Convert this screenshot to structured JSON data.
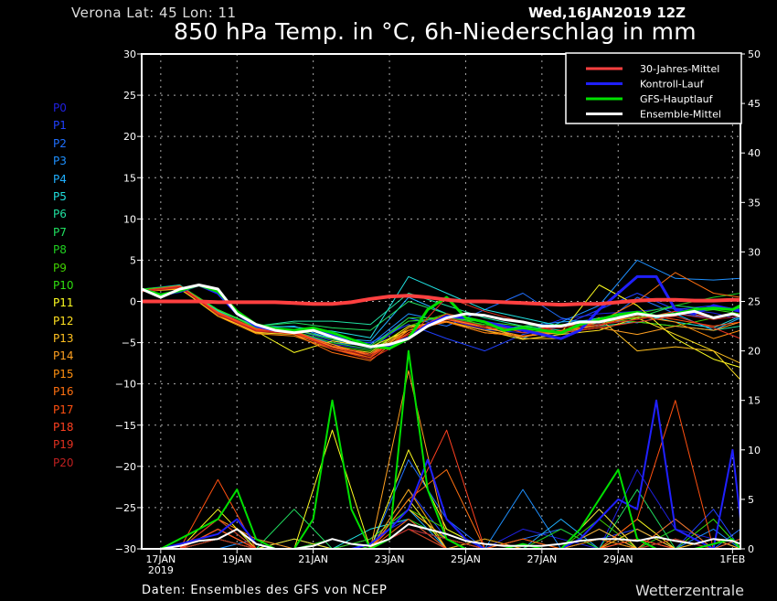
{
  "header": {
    "location": "Verona  Lat: 45 Lon: 11",
    "date": "Wed,16JAN2019 12Z",
    "title": "850 hPa Temp. in °C, 6h-Niederschlag in mm"
  },
  "footer": {
    "source": "Daten: Ensembles des GFS von NCEP",
    "brand": "Wetterzentrale"
  },
  "chart_data": {
    "type": "line",
    "title": "850 hPa Temp. in °C, 6h-Niederschlag in mm",
    "time_start": "16JAN2019 12Z",
    "time_step_hours_main": 12,
    "time_step_hours_members": 24,
    "x_range_days": [
      0,
      15.75
    ],
    "left_axis": {
      "label": "°C",
      "ylim": [
        -30,
        30
      ],
      "ticks": [
        30,
        25,
        20,
        15,
        10,
        5,
        0,
        -5,
        -10,
        -15,
        -20,
        -25,
        -30
      ]
    },
    "right_axis": {
      "label": "mm",
      "ylim": [
        0,
        50
      ],
      "ticks": [
        50,
        45,
        40,
        35,
        30,
        25,
        20,
        15,
        10,
        5,
        0
      ]
    },
    "x_ticks": [
      {
        "day": 0.5,
        "label": "17JAN",
        "sub": "2019"
      },
      {
        "day": 2.5,
        "label": "19JAN"
      },
      {
        "day": 4.5,
        "label": "21JAN"
      },
      {
        "day": 6.5,
        "label": "23JAN"
      },
      {
        "day": 8.5,
        "label": "25JAN"
      },
      {
        "day": 10.5,
        "label": "27JAN"
      },
      {
        "day": 12.5,
        "label": "29JAN"
      },
      {
        "day": 15.5,
        "label": "1FEB"
      }
    ],
    "grid": true,
    "legend_position": "top-right",
    "legend": [
      {
        "name": "30-Jahres-Mittel",
        "color": "#ff4040"
      },
      {
        "name": "Kontroll-Lauf",
        "color": "#2020ff"
      },
      {
        "name": "GFS-Hauptlauf",
        "color": "#00e000"
      },
      {
        "name": "Ensemble-Mittel",
        "color": "#ffffff"
      }
    ],
    "main_series": [
      {
        "name": "30-Jahres-Mittel",
        "color": "#ff4040",
        "temp": [
          0,
          0,
          0,
          0,
          -0.1,
          -0.1,
          -0.1,
          -0.1,
          -0.2,
          -0.3,
          -0.3,
          -0.1,
          0.3,
          0.6,
          0.7,
          0.5,
          0.2,
          0,
          0,
          -0.1,
          -0.2,
          -0.3,
          -0.4,
          -0.3,
          -0.3,
          -0.1,
          0.1,
          0.2,
          0.2,
          0.1,
          0.1,
          0.2,
          0.2
        ]
      },
      {
        "name": "Kontroll-Lauf",
        "color": "#2020ff",
        "temp": [
          1.5,
          0.8,
          1.2,
          2,
          1,
          -1.5,
          -3,
          -3.5,
          -3.7,
          -3.4,
          -4,
          -5,
          -5.5,
          -5.3,
          -4.4,
          -2.8,
          -1.8,
          -2,
          -2.5,
          -3,
          -3.5,
          -4,
          -4.5,
          -3.5,
          -1,
          1,
          3,
          3,
          -1,
          -1.5,
          -0.5,
          -1,
          -1.2
        ],
        "precip": [
          0,
          0,
          0.5,
          1,
          1.5,
          3,
          0.5,
          0,
          0,
          0,
          0,
          0,
          0.5,
          2,
          4,
          9,
          3,
          1,
          0,
          0,
          0,
          0,
          0,
          1,
          3,
          5,
          4,
          15,
          2,
          1,
          0,
          10,
          3
        ]
      },
      {
        "name": "GFS-Hauptlauf",
        "color": "#00e000",
        "temp": [
          1.5,
          0.8,
          1.3,
          2,
          1.2,
          -1.2,
          -2.8,
          -3.3,
          -3.5,
          -3.2,
          -3.8,
          -4.6,
          -5.4,
          -5.7,
          -4.5,
          -1,
          0.5,
          -2,
          -2.5,
          -3.5,
          -3.2,
          -3.5,
          -3.8,
          -2.8,
          -2.2,
          -1.6,
          -1.3,
          -1.8,
          -1.5,
          -1,
          -0.8,
          -1,
          -0.5
        ],
        "precip": [
          0,
          0,
          1,
          2,
          3,
          6,
          1,
          0,
          0,
          3,
          15,
          4,
          0,
          1,
          20,
          6,
          1,
          0,
          0,
          0,
          0.5,
          0,
          0,
          2,
          5,
          8,
          1,
          0,
          0,
          0,
          0.5,
          1,
          0
        ]
      },
      {
        "name": "Ensemble-Mittel",
        "color": "#ffffff",
        "temp": [
          1.5,
          0.5,
          1.5,
          2,
          1.5,
          -1.5,
          -2.8,
          -3.5,
          -3.8,
          -3.5,
          -4.3,
          -5,
          -5.5,
          -5.2,
          -4.5,
          -3,
          -2,
          -1.5,
          -1.7,
          -2.2,
          -2.5,
          -3,
          -3,
          -2.5,
          -2.5,
          -2,
          -1.5,
          -1.8,
          -1.6,
          -1.2,
          -2,
          -1.5,
          -1.8
        ],
        "precip": [
          0,
          0,
          0.3,
          0.8,
          1,
          2,
          0.5,
          0,
          0,
          0.3,
          1,
          0.5,
          0.3,
          1,
          2.5,
          2,
          1.5,
          0.8,
          0.5,
          0.3,
          0.3,
          0.3,
          0.5,
          0.8,
          1,
          1,
          0.8,
          1.2,
          0.8,
          0.5,
          1,
          0.8,
          0.5
        ]
      }
    ],
    "members": [
      {
        "name": "P0",
        "color": "#2020e0",
        "temp": [
          1.4,
          1.8,
          -1.2,
          -3.4,
          -3.6,
          -5.2,
          -5.8,
          -2.4,
          -2.2,
          -3.4,
          -3.8,
          -2.2,
          -1.5,
          -1.2,
          -0.8,
          -1.4,
          -2.2
        ],
        "precip": [
          0,
          0,
          2,
          0,
          0,
          0,
          1,
          3,
          0,
          0,
          2,
          1,
          0,
          8,
          2,
          1,
          0
        ]
      },
      {
        "name": "P1",
        "color": "#2040ff",
        "temp": [
          1.5,
          2,
          -1.6,
          -3.2,
          -3.4,
          -4.8,
          -5,
          -2.8,
          -4.5,
          -6,
          -4,
          -3,
          -1,
          1,
          -1,
          -0.5,
          -1
        ],
        "precip": [
          0,
          0,
          3,
          0,
          1,
          0,
          0,
          6,
          1,
          0,
          0,
          0,
          1,
          2,
          0,
          4,
          0
        ]
      },
      {
        "name": "P2",
        "color": "#2070ff",
        "temp": [
          1.2,
          1.7,
          -1.4,
          -3.5,
          -3.8,
          -5,
          -5.4,
          -2,
          -3,
          -1,
          1,
          -2,
          -3,
          0.5,
          -1.5,
          -2,
          -1.5
        ],
        "precip": [
          0,
          0,
          1,
          0,
          0,
          0,
          0,
          9,
          3,
          0,
          1,
          2,
          0,
          0,
          3,
          0,
          2
        ]
      },
      {
        "name": "P3",
        "color": "#1e90ff",
        "temp": [
          1.3,
          1.9,
          -1,
          -3.2,
          -3,
          -4.6,
          -5.2,
          -1.5,
          -2.5,
          -3.5,
          -3,
          -2.5,
          -0.5,
          5,
          2.8,
          2.6,
          2.8
        ],
        "precip": [
          0,
          0,
          0,
          1,
          0,
          0,
          0,
          2,
          1,
          0,
          6,
          0,
          4,
          0,
          0,
          2,
          0
        ]
      },
      {
        "name": "P4",
        "color": "#20b0ff",
        "temp": [
          1.3,
          1.6,
          -1.5,
          -3.3,
          -3.5,
          -4.4,
          -4.8,
          0.5,
          -1.5,
          -3,
          -4.5,
          -2.5,
          -2.2,
          -2.6,
          -1.5,
          -3.5,
          -2
        ],
        "precip": [
          0,
          0,
          2,
          0,
          0,
          0,
          1,
          4,
          0,
          0,
          0,
          3,
          0,
          1,
          0,
          0,
          1
        ]
      },
      {
        "name": "P5",
        "color": "#20e0e0",
        "temp": [
          1.4,
          1.9,
          -1.1,
          -3,
          -3.1,
          -3.6,
          -4.4,
          3,
          1,
          -1,
          -2,
          -3,
          -2,
          -1.5,
          -2.5,
          -3.2,
          -1.8
        ],
        "precip": [
          0,
          0,
          1,
          0,
          0,
          0,
          2,
          3,
          0,
          1,
          0,
          0,
          2,
          0,
          1,
          0,
          0
        ]
      },
      {
        "name": "P6",
        "color": "#20e0a0",
        "temp": [
          1.4,
          2,
          -1.2,
          -3,
          -2.4,
          -2.4,
          -2.8,
          1,
          -0.5,
          -2,
          -3,
          -3.5,
          -3,
          -2.5,
          -3,
          -3.5,
          -3
        ],
        "precip": [
          0,
          0,
          0,
          0,
          1,
          0,
          0,
          5,
          0,
          0,
          0,
          0,
          1,
          0,
          0,
          1,
          0
        ]
      },
      {
        "name": "P7",
        "color": "#20e060",
        "temp": [
          1.5,
          1.9,
          -1,
          -3,
          -2.6,
          -3.2,
          -3.5,
          0,
          -1.5,
          -2.5,
          -3.5,
          -4,
          -2.5,
          -2,
          -0.5,
          -1,
          -0.8
        ],
        "precip": [
          0,
          0,
          2,
          0,
          4,
          0,
          0,
          2,
          0,
          0,
          0,
          0,
          0,
          6,
          0,
          0,
          1
        ]
      },
      {
        "name": "P8",
        "color": "#20d020",
        "temp": [
          1.4,
          1.8,
          -1.3,
          -3.3,
          -3.6,
          -5,
          -5.8,
          -2,
          -2,
          -2.8,
          -3.6,
          -3,
          -2.8,
          -1.5,
          -0.5,
          0.5,
          1
        ],
        "precip": [
          0,
          0,
          1,
          0,
          0,
          1,
          0,
          3,
          1,
          0,
          0,
          2,
          0,
          0,
          2,
          0,
          0
        ]
      },
      {
        "name": "P9",
        "color": "#40d000",
        "temp": [
          1.4,
          1.7,
          -1.5,
          -3.5,
          -3.7,
          -5.4,
          -6,
          -3,
          -1.5,
          -3,
          -3.5,
          -4,
          -2,
          -2.5,
          -3,
          -2,
          -1.5
        ],
        "precip": [
          0,
          0,
          3,
          0,
          0,
          0,
          1,
          4,
          2,
          0,
          0,
          0,
          3,
          0,
          0,
          1,
          0
        ]
      },
      {
        "name": "P10",
        "color": "#30e010",
        "temp": [
          1.5,
          1.9,
          -1,
          -3.2,
          -3.4,
          -4.6,
          -5.4,
          -2.4,
          -2,
          -2.5,
          -3,
          -2.8,
          -2.5,
          -2,
          -1.5,
          -1,
          -1.5
        ],
        "precip": [
          0,
          0,
          2,
          0,
          0,
          0,
          0,
          6,
          0,
          1,
          0,
          0,
          1,
          0,
          0,
          3,
          0
        ]
      },
      {
        "name": "P11",
        "color": "#ffff20",
        "temp": [
          1.3,
          1.6,
          -1.8,
          -3.6,
          -6.2,
          -4.8,
          -5.5,
          -3.5,
          -2.5,
          -3.8,
          -4.2,
          -3.8,
          2,
          -0.5,
          -4.5,
          -7,
          -8
        ],
        "precip": [
          0,
          0,
          4,
          0,
          0,
          12,
          0,
          10,
          2,
          0,
          0,
          0,
          0,
          3,
          0,
          0,
          0
        ]
      },
      {
        "name": "P12",
        "color": "#ffe020",
        "temp": [
          1.2,
          1.5,
          -1.6,
          -3.8,
          -4,
          -5.6,
          -6.2,
          -3,
          -2.5,
          -3.5,
          -4.6,
          -4,
          -3.5,
          -2,
          -4,
          -6,
          -9.5
        ],
        "precip": [
          0,
          0,
          2,
          0,
          1,
          0,
          0,
          5,
          0,
          0,
          1,
          0,
          4,
          0,
          1,
          0,
          0
        ]
      },
      {
        "name": "P13",
        "color": "#ffc020",
        "temp": [
          1.3,
          1.8,
          -1.4,
          -3.6,
          -3.8,
          -5.5,
          -6.4,
          -3.2,
          -2.2,
          -3,
          -4.5,
          -4.5,
          -2,
          -6,
          -5.5,
          -6,
          -7.5
        ],
        "precip": [
          0,
          0,
          1,
          0,
          0,
          0,
          0,
          4,
          1,
          0,
          0,
          0,
          0,
          2,
          0,
          0,
          0
        ]
      },
      {
        "name": "P14",
        "color": "#ffa020",
        "temp": [
          1.2,
          1.7,
          -1.6,
          -3.7,
          -3.8,
          -5.2,
          -6.6,
          -3.5,
          -2,
          -3.2,
          -4.2,
          -3.8,
          -3.2,
          -4,
          -3,
          -3.5,
          -2.5
        ],
        "precip": [
          0,
          0,
          2,
          0,
          0,
          0,
          0,
          18,
          1,
          0,
          0,
          0,
          2,
          0,
          0,
          1,
          0
        ]
      },
      {
        "name": "P15",
        "color": "#ff9010",
        "temp": [
          1.3,
          1.8,
          -1.8,
          -3.9,
          -4.2,
          -5.8,
          -6.8,
          -3.2,
          -2.4,
          -3.5,
          -4.3,
          -3.6,
          -2.8,
          -1.8,
          -2.5,
          -4.5,
          -3.5
        ],
        "precip": [
          0,
          0,
          3,
          1,
          0,
          0,
          0,
          6,
          0,
          1,
          0,
          0,
          0,
          1,
          0,
          0,
          0
        ]
      },
      {
        "name": "P16",
        "color": "#ff7010",
        "temp": [
          1.2,
          1.6,
          -1.5,
          -3.5,
          -4,
          -6.2,
          -7.2,
          -3.5,
          -2.5,
          -3.8,
          -4.2,
          -3.5,
          -2.5,
          0,
          3.5,
          1,
          0.5
        ],
        "precip": [
          0,
          0,
          2,
          0,
          0,
          0,
          0,
          5,
          8,
          0,
          0,
          0,
          1,
          0,
          3,
          0,
          0
        ]
      },
      {
        "name": "P17",
        "color": "#ff5010",
        "temp": [
          1.2,
          1.7,
          -1.4,
          -3.4,
          -3.7,
          -5.6,
          -6.8,
          -3.8,
          -1.5,
          -2.5,
          -3.8,
          -3.6,
          -3,
          -1.5,
          -2.2,
          -3,
          -2.5
        ],
        "precip": [
          0,
          0,
          7,
          0,
          0,
          0,
          0,
          3,
          0,
          0,
          1,
          0,
          0,
          3,
          15,
          0,
          0
        ]
      },
      {
        "name": "P18",
        "color": "#ff4020",
        "temp": [
          1.3,
          1.9,
          -1.3,
          -3.3,
          -3.6,
          -5.4,
          -6.4,
          -4,
          -2.2,
          -3.2,
          -3.6,
          -3,
          -2.8,
          -2.2,
          -1.2,
          -2,
          -1.5
        ],
        "precip": [
          0,
          0,
          2,
          0,
          0,
          0,
          0,
          4,
          12,
          0,
          0,
          0,
          0,
          1,
          0,
          0,
          1
        ]
      },
      {
        "name": "P19",
        "color": "#e03020",
        "temp": [
          1.3,
          1.8,
          -1.5,
          -3.5,
          -3.8,
          -5.8,
          -7,
          -4.5,
          0.5,
          -1.2,
          -2.5,
          -3.8,
          -3.2,
          -2.5,
          -1.8,
          -3.2,
          -4.5
        ],
        "precip": [
          0,
          0,
          3,
          0,
          0,
          0,
          0,
          2,
          0,
          0,
          0,
          0,
          0,
          0,
          0,
          0,
          0
        ]
      },
      {
        "name": "P20",
        "color": "#c02020",
        "temp": [
          1.2,
          1.7,
          -1.6,
          -3.6,
          -3.9,
          -5.6,
          -6.6,
          -4.2,
          -2,
          -3,
          -3.6,
          -3.2,
          -2.8,
          -2.2,
          -1.5,
          -2.2,
          -1.8
        ],
        "precip": [
          0,
          0,
          1,
          0,
          0,
          0,
          0,
          2,
          1,
          0,
          0,
          0,
          0,
          0,
          1,
          0,
          0
        ]
      }
    ]
  }
}
